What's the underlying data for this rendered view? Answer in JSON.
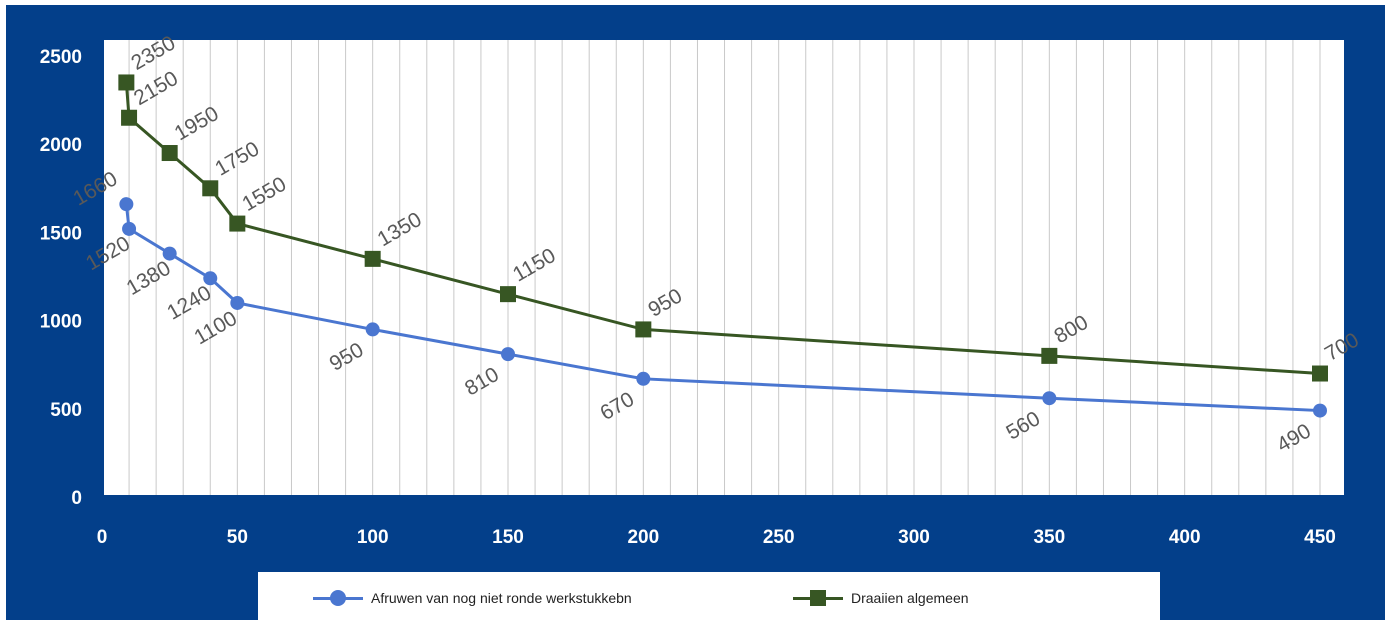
{
  "chart_data": {
    "type": "line",
    "title": "",
    "xlabel": "",
    "ylabel": "",
    "xlim": [
      0,
      450
    ],
    "ylim": [
      0,
      2500
    ],
    "x_ticks": [
      0,
      50,
      100,
      150,
      200,
      250,
      300,
      350,
      400,
      450
    ],
    "y_ticks": [
      0,
      500,
      1000,
      1500,
      2000,
      2500
    ],
    "grid": "vertical",
    "legend_position": "bottom",
    "series": [
      {
        "name": "Afruwen van nog niet ronde werkstukkebn",
        "color": "#4a76d0",
        "marker": "circle",
        "x": [
          9,
          10,
          25,
          40,
          50,
          100,
          150,
          200,
          350,
          450
        ],
        "y": [
          1660,
          1520,
          1380,
          1240,
          1100,
          950,
          810,
          670,
          560,
          490
        ],
        "labels": [
          "1660",
          "1520",
          "1380",
          "1240",
          "1100",
          "950",
          "810",
          "670",
          "560",
          "490"
        ]
      },
      {
        "name": "Draaiien algemeen",
        "color": "#375623",
        "marker": "square",
        "x": [
          9,
          10,
          25,
          40,
          50,
          100,
          150,
          200,
          350,
          450
        ],
        "y": [
          2350,
          2150,
          1950,
          1750,
          1550,
          1350,
          1150,
          950,
          800,
          700
        ],
        "labels": [
          "2350",
          "2150",
          "1950",
          "1750",
          "1550",
          "1350",
          "1150",
          "950",
          "800",
          "700"
        ]
      }
    ]
  }
}
